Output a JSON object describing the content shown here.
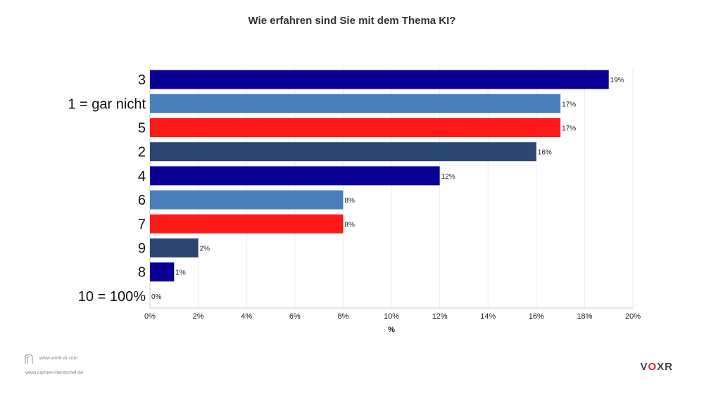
{
  "chart_data": {
    "type": "bar",
    "orientation": "horizontal",
    "title": "Wie erfahren sind Sie mit dem Thema KI?",
    "xlabel": "%",
    "ylabel": "",
    "xlim": [
      0,
      20
    ],
    "x_ticks": [
      "0%",
      "2%",
      "4%",
      "6%",
      "8%",
      "10%",
      "12%",
      "14%",
      "16%",
      "18%",
      "20%"
    ],
    "x_tick_values": [
      0,
      2,
      4,
      6,
      8,
      10,
      12,
      14,
      16,
      18,
      20
    ],
    "grid": true,
    "categories": [
      "3",
      "1 = gar nicht",
      "5",
      "2",
      "4",
      "6",
      "7",
      "9",
      "8",
      "10 = 100%"
    ],
    "values": [
      19,
      17,
      17,
      16,
      12,
      8,
      8,
      2,
      1,
      0
    ],
    "value_labels": [
      "19%",
      "17%",
      "17%",
      "16%",
      "12%",
      "8%",
      "8%",
      "2%",
      "1%",
      "0%"
    ],
    "colors": [
      "#0a0096",
      "#4a7ebb",
      "#ff1a1a",
      "#2b4770",
      "#0a0096",
      "#4a7ebb",
      "#ff1a1a",
      "#2b4770",
      "#0a0096",
      "#4a7ebb"
    ]
  },
  "footer": {
    "url1": "www.work-ai.com",
    "url2": "www.carmen-hentschel.de",
    "brand_prefix": "V",
    "brand_o": "O",
    "brand_suffix": "XR",
    "logo_icon": "arch-outline-icon"
  }
}
